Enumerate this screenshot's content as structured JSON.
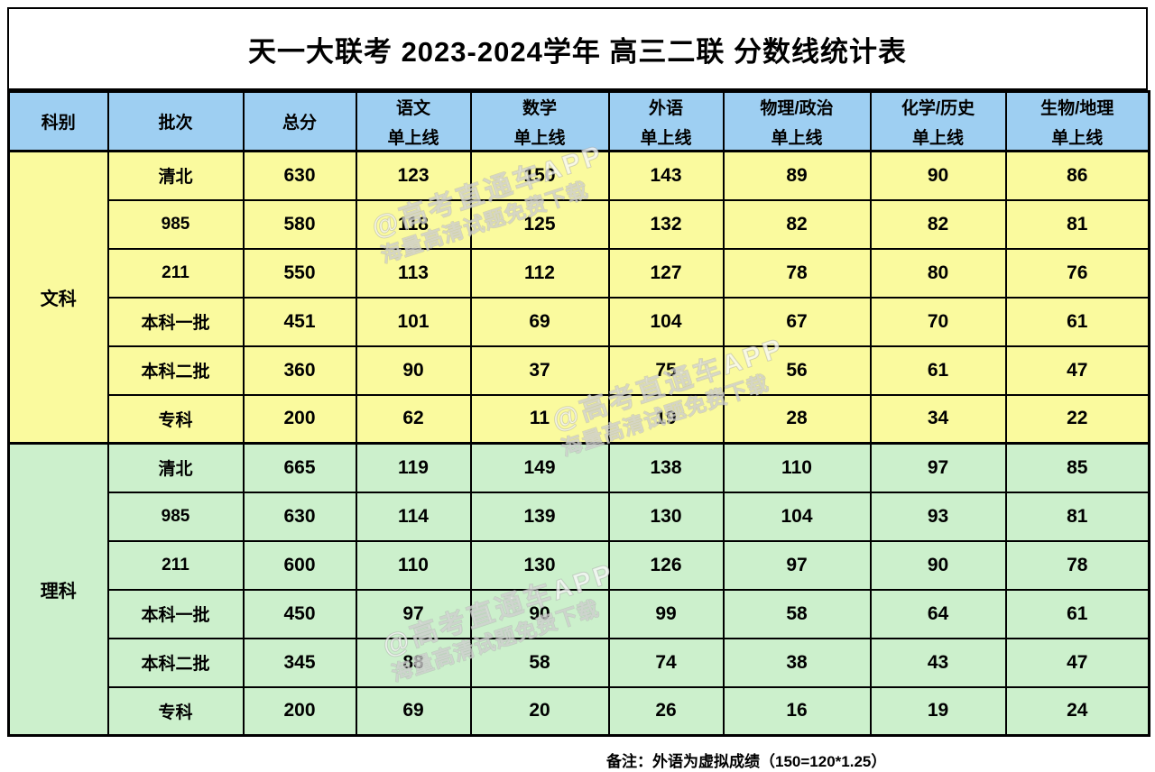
{
  "title": "天一大联考 2023-2024学年 高三二联 分数线统计表",
  "header": {
    "columns": [
      {
        "label": "科别",
        "sublabel": ""
      },
      {
        "label": "批次",
        "sublabel": ""
      },
      {
        "label": "总分",
        "sublabel": ""
      },
      {
        "label": "语文",
        "sublabel": "单上线"
      },
      {
        "label": "数学",
        "sublabel": "单上线"
      },
      {
        "label": "外语",
        "sublabel": "单上线"
      },
      {
        "label": "物理/政治",
        "sublabel": "单上线"
      },
      {
        "label": "化学/历史",
        "sublabel": "单上线"
      },
      {
        "label": "生物/地理",
        "sublabel": "单上线"
      }
    ]
  },
  "chart_data": {
    "type": "table",
    "title": "天一大联考 2023-2024学年 高三二联 分数线统计表",
    "columns": [
      "科别",
      "批次",
      "总分",
      "语文单上线",
      "数学单上线",
      "外语单上线",
      "物理/政治单上线",
      "化学/历史单上线",
      "生物/地理单上线"
    ],
    "sections": [
      {
        "category": "文科",
        "rows": [
          {
            "batch": "清北",
            "values": [
              630,
              123,
              150,
              143,
              89,
              90,
              86
            ]
          },
          {
            "batch": "985",
            "values": [
              580,
              118,
              125,
              132,
              82,
              82,
              81
            ]
          },
          {
            "batch": "211",
            "values": [
              550,
              113,
              112,
              127,
              78,
              80,
              76
            ]
          },
          {
            "batch": "本科一批",
            "values": [
              451,
              101,
              69,
              104,
              67,
              70,
              61
            ]
          },
          {
            "batch": "本科二批",
            "values": [
              360,
              90,
              37,
              75,
              56,
              61,
              47
            ]
          },
          {
            "batch": "专科",
            "values": [
              200,
              62,
              11,
              19,
              28,
              34,
              22
            ]
          }
        ]
      },
      {
        "category": "理科",
        "rows": [
          {
            "batch": "清北",
            "values": [
              665,
              119,
              149,
              138,
              110,
              97,
              85
            ]
          },
          {
            "batch": "985",
            "values": [
              630,
              114,
              139,
              130,
              104,
              93,
              81
            ]
          },
          {
            "batch": "211",
            "values": [
              600,
              110,
              130,
              126,
              97,
              90,
              78
            ]
          },
          {
            "batch": "本科一批",
            "values": [
              450,
              97,
              90,
              99,
              58,
              64,
              61
            ]
          },
          {
            "batch": "本科二批",
            "values": [
              345,
              88,
              58,
              74,
              38,
              43,
              47
            ]
          },
          {
            "batch": "专科",
            "values": [
              200,
              69,
              20,
              26,
              16,
              19,
              24
            ]
          }
        ]
      }
    ]
  },
  "footer_note": "备注：外语为虚拟成绩（150=120*1.25）",
  "watermark": {
    "line1": "@高考直通车APP",
    "line2": "海量高清试题免费下载"
  },
  "colors": {
    "header_bg": "#9ECFF2",
    "liberal_arts_bg": "#FAFA9E",
    "science_bg": "#CCF0CC",
    "border": "#000000",
    "watermark_text": "#FFFFFF"
  }
}
